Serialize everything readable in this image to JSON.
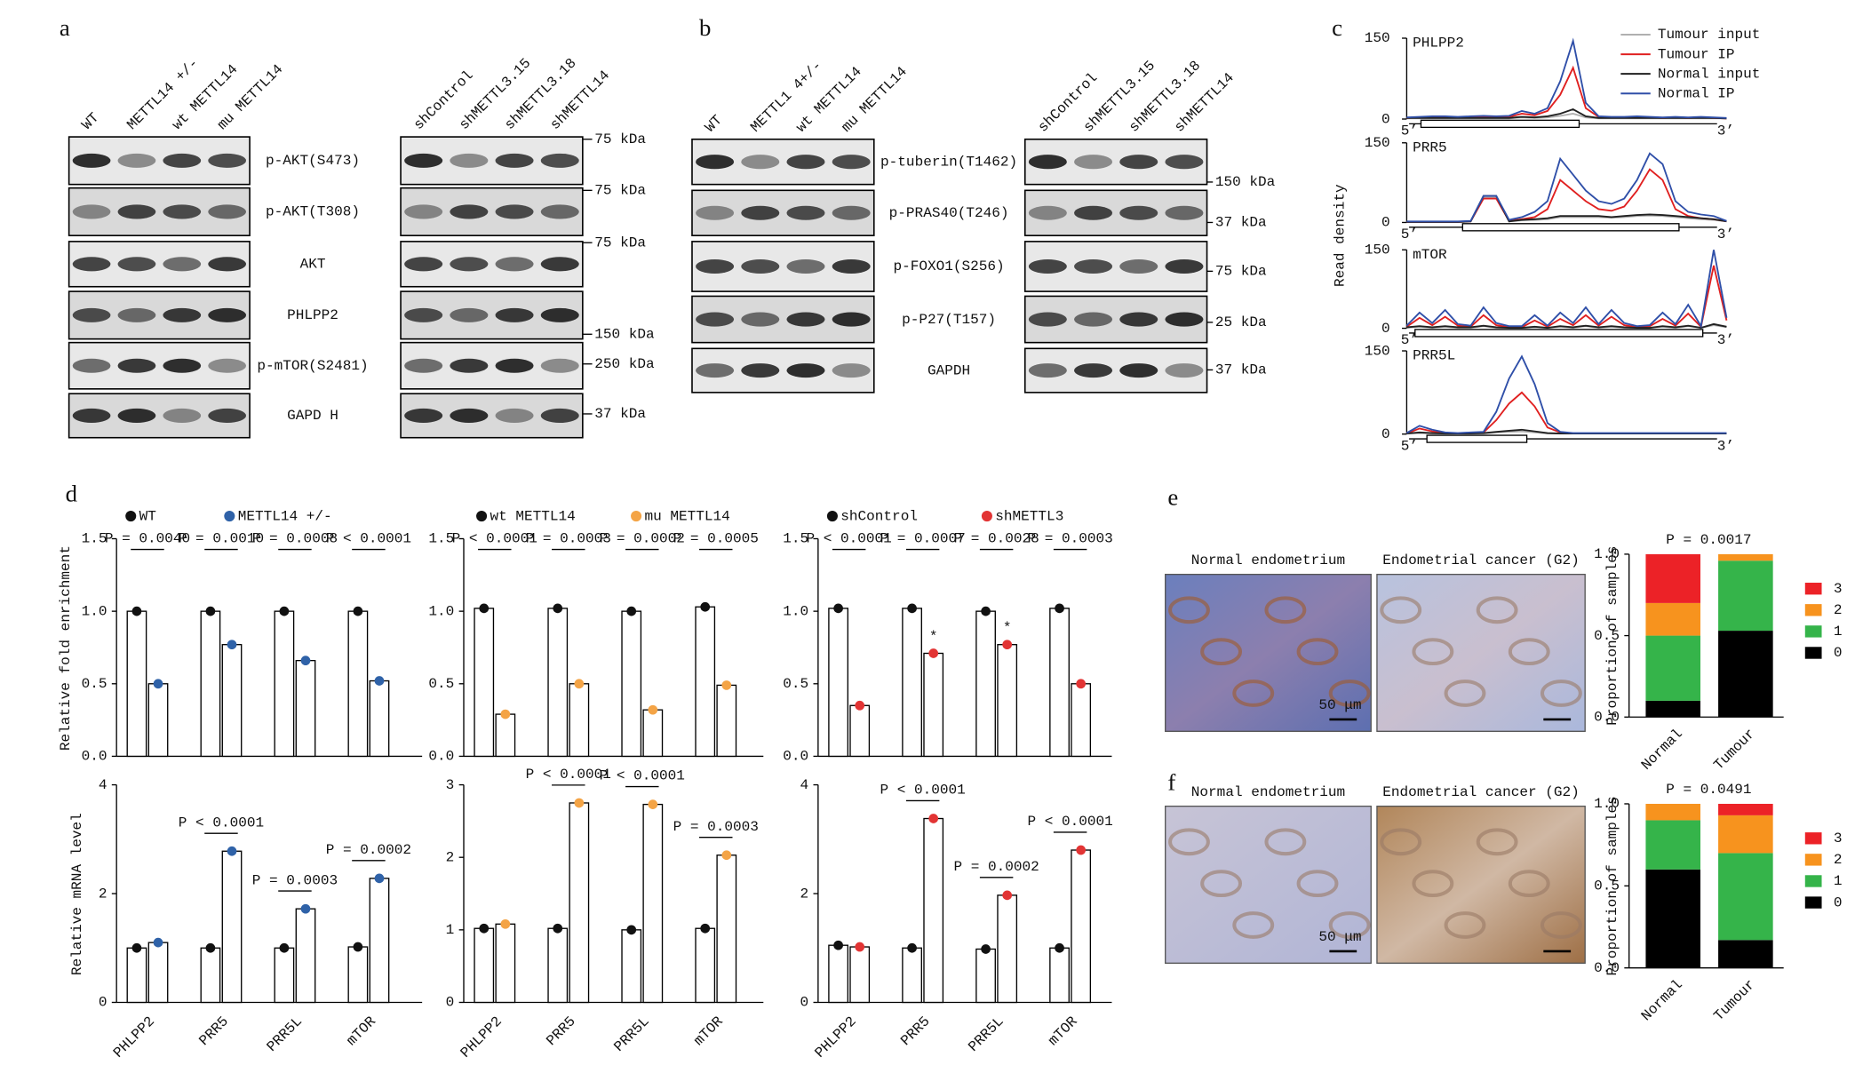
{
  "panel_labels": [
    "a",
    "b",
    "c",
    "d",
    "e",
    "f"
  ],
  "blots": [
    {
      "lanes": [
        "WT",
        "METTL14 +/-",
        "wt METTL14",
        "mu METTL14"
      ],
      "rows": [
        "p-AKT(S473)",
        "p-AKT(T308)",
        "AKT",
        "PHLPP2",
        "p-mTOR(S2481)",
        "GAPD H"
      ]
    },
    {
      "lanes": [
        "shControl",
        "shMETTL3.15",
        "shMETTL3.18",
        "shMETTL14"
      ],
      "markers": [
        "75 kDa",
        "75 kDa",
        "75 kDa",
        "150 kDa",
        "250 kDa",
        "37 kDa"
      ]
    },
    {
      "lanes": [
        "WT",
        "METTL1 4+/-",
        "wt METTL14",
        "mu METTL14"
      ],
      "rows": [
        "p-tuberin(T1462)",
        "p-PRAS40(T246)",
        "p-FOXO1(S256)",
        "p-P27(T157)",
        "GAPDH"
      ]
    },
    {
      "lanes": [
        "shControl",
        "shMETTL3.15",
        "shMETTL3.18",
        "shMETTL14"
      ],
      "markers": [
        "150 kDa",
        "37 kDa",
        "75 kDa",
        "25 kDa",
        "37 kDa"
      ]
    }
  ],
  "histology": [
    {
      "captions": [
        "Normal endometrium",
        "Endometrial cancer (G2)"
      ],
      "scale_bar": "50 μm"
    },
    {
      "captions": [
        "Normal endometrium",
        "Endometrial cancer (G2)"
      ],
      "scale_bar": "50 μm"
    }
  ],
  "chart_data": [
    {
      "type": "coverage",
      "ylabel": "Read density",
      "five_prime": "5’",
      "three_prime": "3’",
      "ylim": [
        0,
        150
      ],
      "yticks": [
        0,
        150
      ],
      "xlim": [
        0,
        100
      ],
      "x": [
        0,
        4,
        8,
        12,
        16,
        20,
        24,
        28,
        32,
        36,
        40,
        44,
        48,
        52,
        56,
        60,
        64,
        68,
        72,
        76,
        80,
        84,
        88,
        92,
        96,
        100
      ],
      "series": [
        {
          "name": "Tumour input",
          "color": "#b0b0b0"
        },
        {
          "name": "Tumour IP",
          "color": "#e02020"
        },
        {
          "name": "Normal input",
          "color": "#202020"
        },
        {
          "name": "Normal IP",
          "color": "#2f4fa8"
        }
      ],
      "tracks": [
        {
          "title": "PHLPP2",
          "series_values": [
            [
              1,
              1,
              1,
              1,
              1,
              1,
              1,
              1,
              1,
              3,
              2,
              3,
              6,
              10,
              3,
              1,
              1,
              1,
              1,
              1,
              1,
              1,
              1,
              1,
              1,
              1
            ],
            [
              2,
              3,
              3,
              3,
              3,
              3,
              4,
              3,
              4,
              10,
              7,
              15,
              45,
              95,
              20,
              4,
              3,
              3,
              3,
              3,
              2,
              3,
              2,
              3,
              2,
              1
            ],
            [
              2,
              2,
              2,
              2,
              2,
              2,
              2,
              2,
              2,
              4,
              3,
              5,
              10,
              18,
              5,
              2,
              2,
              2,
              2,
              2,
              2,
              2,
              2,
              2,
              2,
              1
            ],
            [
              3,
              4,
              5,
              5,
              4,
              5,
              6,
              5,
              6,
              15,
              10,
              20,
              70,
              145,
              30,
              5,
              4,
              4,
              5,
              4,
              3,
              4,
              3,
              4,
              3,
              2
            ]
          ]
        },
        {
          "title": "PRR5",
          "series_values": [
            [
              1,
              1,
              1,
              1,
              1,
              2,
              48,
              48,
              2,
              4,
              5,
              6,
              10,
              10,
              10,
              10,
              9,
              10,
              12,
              13,
              12,
              10,
              8,
              6,
              5,
              2
            ],
            [
              1,
              1,
              1,
              1,
              1,
              2,
              45,
              45,
              3,
              6,
              10,
              25,
              80,
              60,
              40,
              25,
              22,
              30,
              60,
              100,
              80,
              25,
              12,
              8,
              6,
              2
            ],
            [
              1,
              1,
              1,
              1,
              1,
              2,
              50,
              50,
              2,
              5,
              6,
              8,
              12,
              12,
              12,
              12,
              10,
              12,
              14,
              15,
              14,
              12,
              10,
              8,
              6,
              2
            ],
            [
              2,
              2,
              2,
              2,
              2,
              3,
              50,
              50,
              5,
              10,
              20,
              40,
              120,
              90,
              60,
              40,
              35,
              45,
              80,
              130,
              110,
              40,
              20,
              15,
              12,
              3
            ]
          ]
        },
        {
          "title": "mTOR",
          "series_values": [
            [
              1,
              3,
              1,
              3,
              1,
              1,
              4,
              1,
              1,
              1,
              2,
              1,
              3,
              1,
              4,
              1,
              3,
              1,
              1,
              1,
              3,
              1,
              4,
              1,
              6,
              2
            ],
            [
              3,
              20,
              6,
              22,
              5,
              3,
              25,
              6,
              2,
              2,
              15,
              3,
              18,
              6,
              25,
              5,
              22,
              6,
              2,
              4,
              18,
              5,
              28,
              3,
              120,
              15
            ],
            [
              2,
              4,
              2,
              4,
              2,
              2,
              5,
              2,
              1,
              1,
              3,
              1,
              4,
              2,
              5,
              2,
              4,
              2,
              1,
              1,
              4,
              2,
              5,
              1,
              8,
              3
            ],
            [
              5,
              30,
              10,
              35,
              8,
              5,
              40,
              10,
              4,
              4,
              25,
              5,
              30,
              10,
              40,
              8,
              35,
              10,
              4,
              6,
              30,
              8,
              45,
              4,
              150,
              20
            ]
          ]
        },
        {
          "title": "PRR5L",
          "series_values": [
            [
              1,
              2,
              1,
              1,
              1,
              1,
              1,
              3,
              4,
              5,
              3,
              1,
              1,
              1,
              1,
              1,
              1,
              1,
              1,
              1,
              1,
              1,
              1,
              1,
              1,
              1
            ],
            [
              1,
              10,
              5,
              2,
              1,
              2,
              3,
              25,
              55,
              75,
              50,
              12,
              3,
              1,
              1,
              1,
              1,
              1,
              1,
              1,
              1,
              1,
              1,
              1,
              1,
              1
            ],
            [
              1,
              3,
              2,
              1,
              1,
              1,
              2,
              4,
              6,
              8,
              5,
              2,
              1,
              1,
              1,
              1,
              1,
              1,
              1,
              1,
              1,
              1,
              1,
              1,
              1,
              1
            ],
            [
              2,
              15,
              8,
              3,
              2,
              3,
              4,
              40,
              100,
              140,
              90,
              20,
              4,
              2,
              2,
              2,
              2,
              2,
              2,
              2,
              2,
              2,
              2,
              2,
              2,
              2
            ]
          ]
        }
      ]
    },
    {
      "type": "bar",
      "ylabel": "Relative fold enrichment",
      "ylim": [
        0,
        1.5
      ],
      "yticks": [
        {
          "value": 0,
          "label": "0.0"
        },
        0.5,
        {
          "value": 1,
          "label": "1.0"
        },
        1.5
      ],
      "series": [
        {
          "name": "WT",
          "color": "#111111",
          "values": [
            1.0,
            1.0,
            1.0,
            1.0
          ]
        },
        {
          "name": "METTL14 +/-",
          "color": "#2f62a8",
          "values": [
            0.5,
            0.77,
            0.66,
            0.52
          ]
        }
      ],
      "p_values": [
        "P = 0.0040",
        "P = 0.0010",
        "P = 0.0008",
        "P < 0.0001"
      ]
    },
    {
      "type": "bar",
      "ylim": [
        0,
        1.5
      ],
      "yticks": [
        {
          "value": 0,
          "label": "0.0"
        },
        0.5,
        {
          "value": 1,
          "label": "1.0"
        },
        1.5
      ],
      "series": [
        {
          "name": "wt METTL14",
          "color": "#111111",
          "values": [
            1.02,
            1.02,
            1.0,
            1.03
          ]
        },
        {
          "name": "mu METTL14",
          "color": "#f4a446",
          "values": [
            0.29,
            0.5,
            0.32,
            0.49
          ]
        }
      ],
      "p_values": [
        "P < 0.0001",
        "P = 0.0003",
        "P = 0.0002",
        "P = 0.0005"
      ]
    },
    {
      "type": "bar",
      "ylim": [
        0,
        1.5
      ],
      "yticks": [
        {
          "value": 0,
          "label": "0.0"
        },
        0.5,
        {
          "value": 1,
          "label": "1.0"
        },
        1.5
      ],
      "series": [
        {
          "name": "shControl",
          "color": "#111111",
          "values": [
            1.02,
            1.02,
            1.0,
            1.02
          ]
        },
        {
          "name": "shMETTL3",
          "color": "#e23434",
          "values": [
            0.35,
            0.71,
            0.77,
            0.5
          ]
        }
      ],
      "series_annotations": [
        null,
        "*",
        "*",
        null
      ],
      "p_values": [
        "P < 0.0001",
        "P = 0.0007",
        "P = 0.0028",
        "P = 0.0003"
      ]
    },
    {
      "type": "bar",
      "ylabel": "Relative mRNA level",
      "ylim": [
        0,
        4
      ],
      "yticks": [
        0,
        2,
        4
      ],
      "categories": [
        "PHLPP2",
        "PRR5",
        "PRR5L",
        "mTOR"
      ],
      "series": [
        {
          "color": "#111111",
          "values": [
            1.0,
            1.0,
            1.0,
            1.02
          ]
        },
        {
          "color": "#2f62a8",
          "values": [
            1.1,
            2.78,
            1.72,
            2.28
          ]
        }
      ],
      "p_values": [
        null,
        "P < 0.0001",
        "P = 0.0003",
        "P = 0.0002"
      ]
    },
    {
      "type": "bar",
      "ylim": [
        0,
        3
      ],
      "yticks": [
        0,
        1,
        2,
        3
      ],
      "categories": [
        "PHLPP2",
        "PRR5",
        "PRR5L",
        "mTOR"
      ],
      "series": [
        {
          "color": "#111111",
          "values": [
            1.02,
            1.02,
            1.0,
            1.02
          ]
        },
        {
          "color": "#f4a446",
          "values": [
            1.08,
            2.75,
            2.73,
            2.03
          ]
        }
      ],
      "p_values": [
        null,
        "P < 0.0001",
        "P < 0.0001",
        "P = 0.0003"
      ]
    },
    {
      "type": "bar",
      "ylim": [
        0,
        4
      ],
      "yticks": [
        0,
        2,
        4
      ],
      "categories": [
        "PHLPP2",
        "PRR5",
        "PRR5L",
        "mTOR"
      ],
      "series": [
        {
          "color": "#111111",
          "values": [
            1.05,
            1.0,
            0.98,
            1.0
          ]
        },
        {
          "color": "#e23434",
          "values": [
            1.02,
            3.38,
            1.97,
            2.8
          ]
        }
      ],
      "p_values": [
        null,
        "P < 0.0001",
        "P = 0.0002",
        "P < 0.0001"
      ]
    },
    {
      "type": "stacked_bar",
      "title": "P = 0.0017",
      "ylabel": "Proportion of samples",
      "ylim": [
        0,
        1
      ],
      "yticks": [
        {
          "value": 0,
          "label": "0.0"
        },
        0.5,
        {
          "value": 1,
          "label": "1.0"
        }
      ],
      "categories": [
        "Normal",
        "Tumour"
      ],
      "series": [
        {
          "name": "0",
          "color": "#000000",
          "values": [
            0.1,
            0.53
          ]
        },
        {
          "name": "1",
          "color": "#35b44a",
          "values": [
            0.4,
            0.43
          ]
        },
        {
          "name": "2",
          "color": "#f7931e",
          "values": [
            0.2,
            0.04
          ]
        },
        {
          "name": "3",
          "color": "#ec2227",
          "values": [
            0.3,
            0
          ]
        }
      ]
    },
    {
      "type": "stacked_bar",
      "title": "P = 0.0491",
      "ylabel": "Proportion of samples",
      "ylim": [
        0,
        1
      ],
      "yticks": [
        {
          "value": 0,
          "label": "0.0"
        },
        0.5,
        {
          "value": 1,
          "label": "1.0"
        }
      ],
      "categories": [
        "Normal",
        "Tumour"
      ],
      "series": [
        {
          "name": "0",
          "color": "#000000",
          "values": [
            0.6,
            0.17
          ]
        },
        {
          "name": "1",
          "color": "#35b44a",
          "values": [
            0.3,
            0.53
          ]
        },
        {
          "name": "2",
          "color": "#f7931e",
          "values": [
            0.1,
            0.23
          ]
        },
        {
          "name": "3",
          "color": "#ec2227",
          "values": [
            0,
            0.07
          ]
        }
      ]
    }
  ]
}
